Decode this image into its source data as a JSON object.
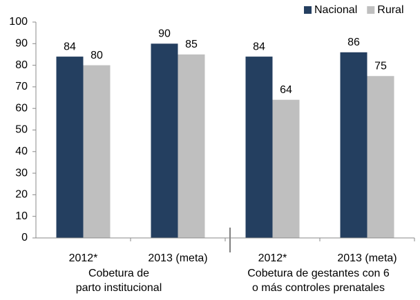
{
  "chart_data": {
    "type": "bar",
    "categories": [
      "2012*",
      "2013 (meta)",
      "2012*",
      "2013 (meta)"
    ],
    "series": [
      {
        "name": "Nacional",
        "color": "#243f60",
        "values": [
          84,
          90,
          84,
          86
        ]
      },
      {
        "name": "Rural",
        "color": "#bfbfbf",
        "values": [
          80,
          85,
          64,
          75
        ]
      }
    ],
    "groups": [
      {
        "lines": [
          "Cobetura de",
          "parto institucional"
        ]
      },
      {
        "lines": [
          "Cobetura de gestantes con 6",
          "o más controles prenatales"
        ]
      }
    ],
    "ylim": [
      0,
      100
    ],
    "yticks": [
      0,
      10,
      20,
      30,
      40,
      50,
      60,
      70,
      80,
      90,
      100
    ],
    "legend": "top-right"
  }
}
